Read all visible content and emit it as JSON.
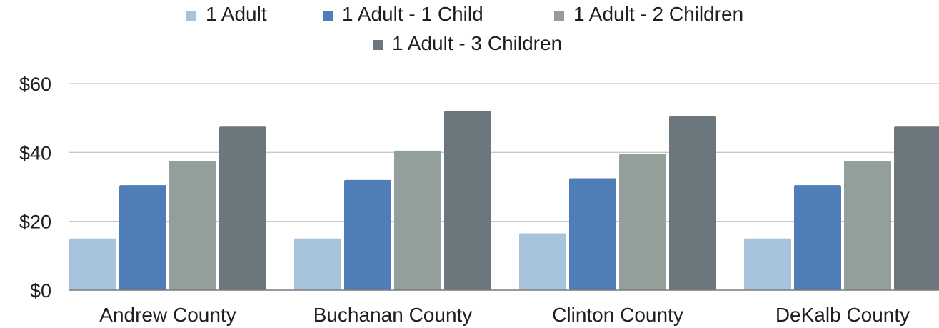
{
  "chart_data": {
    "type": "bar",
    "categories": [
      "Andrew County",
      "Buchanan County",
      "Clinton County",
      "DeKalb County"
    ],
    "series": [
      {
        "name": "1 Adult",
        "color": "#a7c3de",
        "values": [
          15,
          15,
          16.5,
          15
        ]
      },
      {
        "name": "1 Adult - 1 Child",
        "color": "#4e7db7",
        "values": [
          30.5,
          32,
          32.5,
          30.5
        ]
      },
      {
        "name": "1 Adult - 2  Children",
        "color": "#929f9a",
        "values": [
          37.5,
          40.5,
          39.5,
          37.5
        ]
      },
      {
        "name": "1 Adult - 3 Children",
        "color": "#6b777d",
        "values": [
          47.5,
          52,
          50.5,
          47.5
        ]
      }
    ],
    "y_ticks": [
      "$0",
      "$20",
      "$40",
      "$60"
    ],
    "y_tick_values": [
      0,
      20,
      40,
      60
    ],
    "ylim": [
      0,
      60
    ],
    "grid": true,
    "legend_position": "top"
  }
}
